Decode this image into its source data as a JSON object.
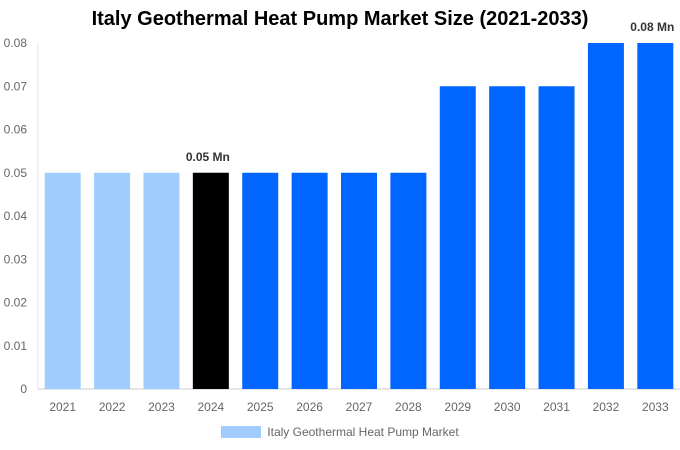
{
  "chart_data": {
    "type": "bar",
    "title": "Italy Geothermal Heat Pump Market Size (2021-2033)",
    "categories": [
      "2021",
      "2022",
      "2023",
      "2024",
      "2025",
      "2026",
      "2027",
      "2028",
      "2029",
      "2030",
      "2031",
      "2032",
      "2033"
    ],
    "series": [
      {
        "name": "Italy Geothermal Heat Pump Market",
        "values": [
          0.05,
          0.05,
          0.05,
          0.05,
          0.05,
          0.05,
          0.05,
          0.05,
          0.07,
          0.07,
          0.07,
          0.08,
          0.08
        ]
      }
    ],
    "bar_colors": [
      "#a0cdfd",
      "#a0cdfd",
      "#a0cdfd",
      "#000000",
      "#0066ff",
      "#0066ff",
      "#0066ff",
      "#0066ff",
      "#0066ff",
      "#0066ff",
      "#0066ff",
      "#0066ff",
      "#0066ff"
    ],
    "data_labels": [
      {
        "index": 3,
        "text": "0.05 Mn"
      },
      {
        "index": 12,
        "text": "0.08 Mn"
      }
    ],
    "yticks": [
      "0",
      "0.01",
      "0.02",
      "0.03",
      "0.04",
      "0.05",
      "0.06",
      "0.07",
      "0.08"
    ],
    "ylim": [
      0,
      0.08
    ],
    "xlabel": "",
    "ylabel": "",
    "grid": false,
    "legend": {
      "position": "bottom",
      "label": "Italy Geothermal Heat Pump Market",
      "color": "#a0cdfd"
    }
  }
}
